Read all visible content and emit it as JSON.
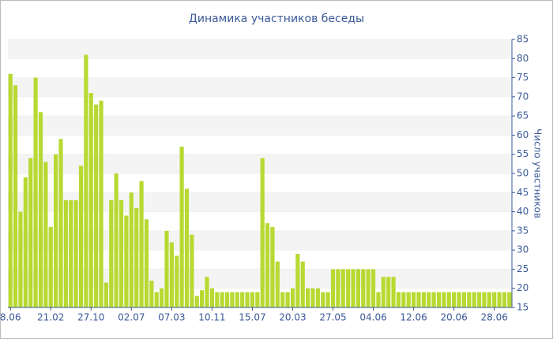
{
  "chart_data": {
    "type": "bar",
    "title": "Динамика участников беседы",
    "y_axis_label": "Число участников",
    "categories": [
      "8.06",
      null,
      null,
      null,
      null,
      null,
      null,
      null,
      "21.02",
      null,
      null,
      null,
      null,
      null,
      null,
      null,
      "27.10",
      null,
      null,
      null,
      null,
      null,
      null,
      null,
      "02.07",
      null,
      null,
      null,
      null,
      null,
      null,
      null,
      "07.03",
      null,
      null,
      null,
      null,
      null,
      null,
      null,
      "10.11",
      null,
      null,
      null,
      null,
      null,
      null,
      null,
      "15.07",
      null,
      null,
      null,
      null,
      null,
      null,
      null,
      "20.03",
      null,
      null,
      null,
      null,
      null,
      null,
      null,
      "27.05",
      null,
      null,
      null,
      null,
      null,
      null,
      null,
      "04.06",
      null,
      null,
      null,
      null,
      null,
      null,
      null,
      "12.06",
      null,
      null,
      null,
      null,
      null,
      null,
      null,
      "20.06",
      null,
      null,
      null,
      null,
      null,
      null,
      null,
      "28.06",
      null,
      null,
      null
    ],
    "values": [
      76,
      73,
      40,
      49,
      54,
      75,
      66,
      53,
      36,
      55,
      59,
      43,
      43,
      43,
      52,
      81,
      71,
      68,
      69,
      21.5,
      43,
      50,
      43,
      39,
      45,
      41,
      48,
      38,
      22,
      19,
      20,
      35,
      32,
      28.5,
      57,
      46,
      34,
      18,
      19.5,
      23,
      20,
      19,
      19,
      19,
      19,
      19,
      19,
      19,
      19,
      19,
      54,
      37,
      36,
      27,
      19,
      19,
      20,
      29,
      27,
      20,
      20,
      20,
      19,
      19,
      25,
      25,
      25,
      25,
      25,
      25,
      25,
      25,
      25,
      19,
      23,
      23,
      23,
      19,
      19,
      19,
      19,
      19,
      19,
      19,
      19,
      19,
      19,
      19,
      19,
      19,
      19,
      19,
      19,
      19,
      19,
      19,
      19,
      19,
      19,
      19
    ],
    "color": "#b8d932",
    "ylim": [
      15,
      85
    ],
    "yticks": [
      15,
      20,
      25,
      30,
      35,
      40,
      45,
      50,
      55,
      60,
      65,
      70,
      75,
      80,
      85
    ],
    "grid": true
  }
}
